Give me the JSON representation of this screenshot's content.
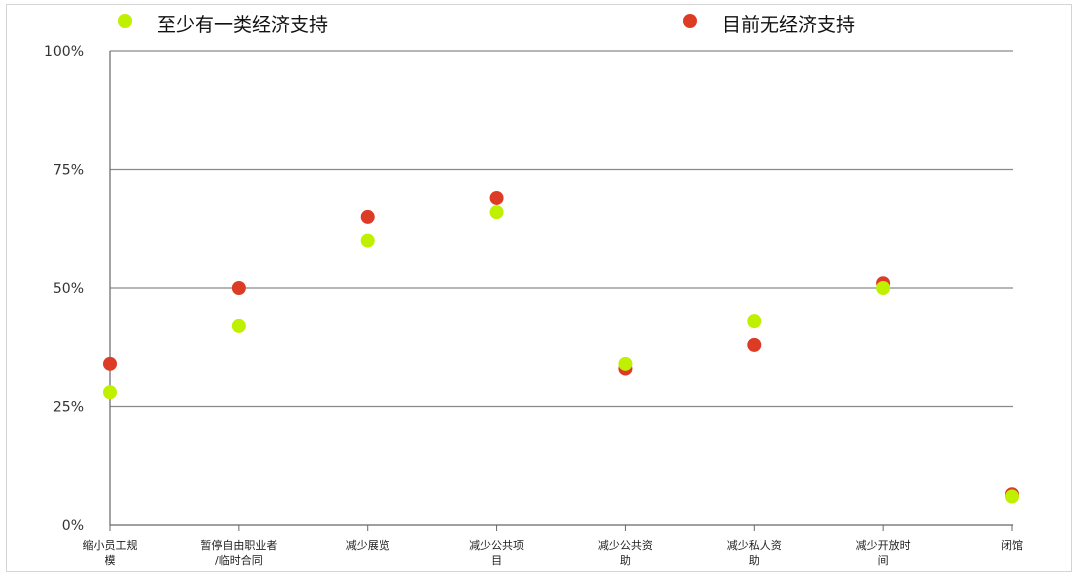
{
  "chart_data": {
    "type": "scatter",
    "title": "",
    "xlabel": "",
    "ylabel": "",
    "ylim": [
      0,
      100
    ],
    "yticks": [
      "0%",
      "25%",
      "50%",
      "75%",
      "100%"
    ],
    "grid": true,
    "legend_position": "top",
    "categories": [
      [
        "缩小员工规",
        "模"
      ],
      [
        "暂停自由职业者",
        "/临时合同"
      ],
      [
        "减少展览"
      ],
      [
        "减少公共项",
        "目"
      ],
      [
        "减少公共资",
        "助"
      ],
      [
        "减少私人资",
        "助"
      ],
      [
        "减少开放时",
        "间"
      ],
      [
        "闭馆"
      ]
    ],
    "series": [
      {
        "name": "至少有一类经济支持",
        "color": "#bff000",
        "values": [
          28,
          42,
          60,
          66,
          34,
          43,
          50,
          6
        ]
      },
      {
        "name": "目前无经济支持",
        "color": "#dc3c26",
        "values": [
          34,
          50,
          65,
          69,
          33,
          38,
          51,
          6.5
        ]
      }
    ]
  }
}
